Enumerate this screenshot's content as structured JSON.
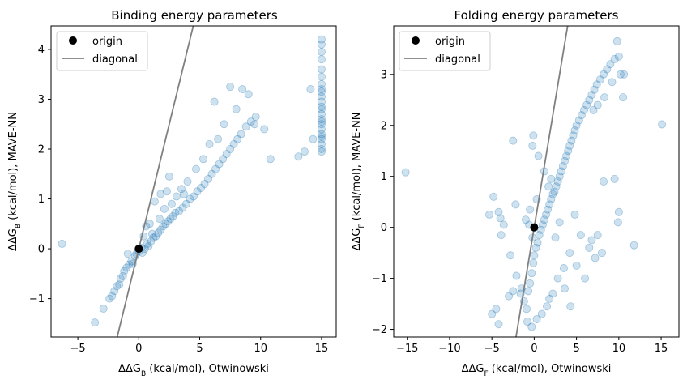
{
  "colors": {
    "points": "#1f77b4",
    "origin": "#000000",
    "diagonal": "#808080"
  },
  "chart_data": [
    {
      "type": "scatter",
      "title": "Binding energy parameters",
      "xlabel": "ΔΔG",
      "xlabel_sub": "B",
      "xlabel_suffix": " (kcal/mol), Otwinowski",
      "ylabel": "ΔΔG",
      "ylabel_sub": "B",
      "ylabel_suffix": " (kcal/mol), MAVE-NN",
      "xlim": [
        -7.2,
        16.2
      ],
      "ylim": [
        -1.77,
        4.47
      ],
      "xticks": [
        -5,
        0,
        5,
        10,
        15
      ],
      "yticks": [
        -1,
        0,
        1,
        2,
        3,
        4
      ],
      "legend_position": "upper-left",
      "legend": [
        {
          "label": "origin",
          "kind": "marker"
        },
        {
          "label": "diagonal",
          "kind": "line"
        }
      ],
      "origin": [
        0,
        0
      ],
      "diagonal_slope": 1,
      "grid": false,
      "points": [
        [
          -6.3,
          0.1
        ],
        [
          -3.6,
          -1.48
        ],
        [
          -2.9,
          -1.2
        ],
        [
          -2.4,
          -1.0
        ],
        [
          -2.2,
          -0.95
        ],
        [
          -2.0,
          -0.85
        ],
        [
          -1.8,
          -0.75
        ],
        [
          -1.6,
          -0.72
        ],
        [
          -1.5,
          -0.6
        ],
        [
          -1.3,
          -0.55
        ],
        [
          -1.2,
          -0.45
        ],
        [
          -1.0,
          -0.38
        ],
        [
          -0.8,
          -0.32
        ],
        [
          -0.6,
          -0.25
        ],
        [
          -0.5,
          -0.3
        ],
        [
          -0.3,
          -0.15
        ],
        [
          -0.2,
          -0.1
        ],
        [
          0.0,
          -0.05
        ],
        [
          0.2,
          0.02
        ],
        [
          0.3,
          -0.08
        ],
        [
          0.5,
          0.0
        ],
        [
          0.7,
          0.1
        ],
        [
          0.8,
          0.05
        ],
        [
          1.0,
          0.15
        ],
        [
          1.2,
          0.22
        ],
        [
          1.4,
          0.25
        ],
        [
          1.6,
          0.32
        ],
        [
          1.8,
          0.38
        ],
        [
          2.0,
          0.45
        ],
        [
          2.2,
          0.5
        ],
        [
          2.4,
          0.55
        ],
        [
          2.6,
          0.6
        ],
        [
          2.8,
          0.65
        ],
        [
          3.0,
          0.72
        ],
        [
          3.3,
          0.75
        ],
        [
          3.6,
          0.82
        ],
        [
          3.9,
          0.9
        ],
        [
          4.2,
          1.0
        ],
        [
          4.5,
          1.05
        ],
        [
          4.8,
          1.15
        ],
        [
          5.1,
          1.22
        ],
        [
          5.4,
          1.3
        ],
        [
          5.7,
          1.4
        ],
        [
          6.0,
          1.5
        ],
        [
          6.3,
          1.6
        ],
        [
          6.6,
          1.7
        ],
        [
          6.9,
          1.8
        ],
        [
          7.2,
          1.9
        ],
        [
          7.5,
          2.0
        ],
        [
          7.8,
          2.1
        ],
        [
          8.1,
          2.2
        ],
        [
          8.4,
          2.3
        ],
        [
          8.8,
          2.45
        ],
        [
          9.2,
          2.55
        ],
        [
          9.6,
          2.65
        ],
        [
          1.3,
          0.95
        ],
        [
          1.8,
          1.1
        ],
        [
          2.3,
          1.15
        ],
        [
          2.5,
          1.45
        ],
        [
          3.5,
          1.2
        ],
        [
          4.0,
          1.35
        ],
        [
          4.7,
          1.6
        ],
        [
          5.3,
          1.8
        ],
        [
          5.8,
          2.1
        ],
        [
          6.2,
          2.95
        ],
        [
          6.5,
          2.2
        ],
        [
          7.0,
          2.5
        ],
        [
          7.5,
          3.25
        ],
        [
          8.0,
          2.8
        ],
        [
          8.5,
          3.2
        ],
        [
          9.0,
          3.1
        ],
        [
          9.5,
          2.5
        ],
        [
          10.3,
          2.4
        ],
        [
          10.8,
          1.8
        ],
        [
          13.1,
          1.85
        ],
        [
          13.6,
          1.95
        ],
        [
          14.1,
          3.2
        ],
        [
          14.3,
          2.2
        ],
        [
          0.9,
          0.5
        ],
        [
          1.7,
          0.6
        ],
        [
          2.7,
          0.9
        ],
        [
          3.1,
          1.05
        ],
        [
          0.4,
          0.25
        ],
        [
          -0.9,
          -0.1
        ],
        [
          0.6,
          0.45
        ],
        [
          1.1,
          0.3
        ],
        [
          2.1,
          0.8
        ],
        [
          3.7,
          1.1
        ],
        [
          15.0,
          4.2
        ],
        [
          15.0,
          4.1
        ],
        [
          15.0,
          3.95
        ],
        [
          15.0,
          3.8
        ],
        [
          15.0,
          3.6
        ],
        [
          15.0,
          3.45
        ],
        [
          15.0,
          3.3
        ],
        [
          15.0,
          3.2
        ],
        [
          15.0,
          3.05
        ],
        [
          15.0,
          2.95
        ],
        [
          15.0,
          2.8
        ],
        [
          15.0,
          2.7
        ],
        [
          15.0,
          2.6
        ],
        [
          15.0,
          2.5
        ],
        [
          15.0,
          2.4
        ],
        [
          15.0,
          2.3
        ],
        [
          15.0,
          2.2
        ],
        [
          15.0,
          2.1
        ],
        [
          15.0,
          2.0
        ],
        [
          15.0,
          1.95
        ],
        [
          15.0,
          2.85
        ],
        [
          15.0,
          3.15
        ],
        [
          15.0,
          2.55
        ],
        [
          15.0,
          2.25
        ]
      ]
    },
    {
      "type": "scatter",
      "title": "Folding energy parameters",
      "xlabel": "ΔΔG",
      "xlabel_sub": "F",
      "xlabel_suffix": " (kcal/mol), Otwinowski",
      "ylabel": "ΔΔG",
      "ylabel_sub": "F",
      "ylabel_suffix": " (kcal/mol), MAVE-NN",
      "xlim": [
        -16.6,
        17.1
      ],
      "ylim": [
        -2.15,
        3.95
      ],
      "xticks": [
        -15,
        -10,
        -5,
        0,
        5,
        10,
        15
      ],
      "yticks": [
        -2,
        -1,
        0,
        1,
        2,
        3
      ],
      "legend_position": "upper-left",
      "legend": [
        {
          "label": "origin",
          "kind": "marker"
        },
        {
          "label": "diagonal",
          "kind": "line"
        }
      ],
      "origin": [
        0,
        0
      ],
      "diagonal_slope": 1,
      "grid": false,
      "points": [
        [
          -15.2,
          1.08
        ],
        [
          -5.3,
          0.25
        ],
        [
          -4.8,
          0.6
        ],
        [
          -4.2,
          0.3
        ],
        [
          -4.0,
          0.18
        ],
        [
          -3.9,
          -0.15
        ],
        [
          -3.6,
          0.05
        ],
        [
          -2.8,
          -0.55
        ],
        [
          -2.1,
          -0.95
        ],
        [
          -1.6,
          -1.3
        ],
        [
          -1.2,
          -1.45
        ],
        [
          -0.9,
          -1.6
        ],
        [
          -0.7,
          -1.25
        ],
        [
          -0.5,
          -1.1
        ],
        [
          -0.3,
          -0.9
        ],
        [
          -0.1,
          -0.7
        ],
        [
          0.0,
          -0.55
        ],
        [
          0.2,
          -0.4
        ],
        [
          0.4,
          -0.3
        ],
        [
          0.6,
          -0.15
        ],
        [
          0.8,
          -0.05
        ],
        [
          1.0,
          0.05
        ],
        [
          1.2,
          0.15
        ],
        [
          1.4,
          0.25
        ],
        [
          1.6,
          0.35
        ],
        [
          1.8,
          0.45
        ],
        [
          2.0,
          0.55
        ],
        [
          2.2,
          0.65
        ],
        [
          2.4,
          0.7
        ],
        [
          2.6,
          0.8
        ],
        [
          2.8,
          0.9
        ],
        [
          3.0,
          1.0
        ],
        [
          3.2,
          1.1
        ],
        [
          3.4,
          1.2
        ],
        [
          3.6,
          1.3
        ],
        [
          3.8,
          1.4
        ],
        [
          4.0,
          1.5
        ],
        [
          4.2,
          1.6
        ],
        [
          4.4,
          1.7
        ],
        [
          4.6,
          1.8
        ],
        [
          4.8,
          1.9
        ],
        [
          5.0,
          2.0
        ],
        [
          5.3,
          2.1
        ],
        [
          5.6,
          2.2
        ],
        [
          5.9,
          2.3
        ],
        [
          6.2,
          2.4
        ],
        [
          6.5,
          2.5
        ],
        [
          6.8,
          2.6
        ],
        [
          7.1,
          2.7
        ],
        [
          7.4,
          2.8
        ],
        [
          7.8,
          2.9
        ],
        [
          8.2,
          3.0
        ],
        [
          8.6,
          3.1
        ],
        [
          9.0,
          3.2
        ],
        [
          9.5,
          3.3
        ],
        [
          10.0,
          3.35
        ],
        [
          10.2,
          3.0
        ],
        [
          9.8,
          3.65
        ],
        [
          10.6,
          3.0
        ],
        [
          9.2,
          2.85
        ],
        [
          8.3,
          2.55
        ],
        [
          7.5,
          2.4
        ],
        [
          7.0,
          2.3
        ],
        [
          10.5,
          2.55
        ],
        [
          15.1,
          2.02
        ],
        [
          11.8,
          -0.35
        ],
        [
          9.9,
          0.1
        ],
        [
          8.0,
          -0.5
        ],
        [
          7.2,
          -0.6
        ],
        [
          6.5,
          -0.4
        ],
        [
          5.5,
          -0.15
        ],
        [
          4.8,
          0.25
        ],
        [
          4.2,
          -0.5
        ],
        [
          3.5,
          -0.8
        ],
        [
          2.8,
          -1.0
        ],
        [
          2.2,
          -1.3
        ],
        [
          1.8,
          -1.4
        ],
        [
          1.5,
          -1.55
        ],
        [
          0.9,
          -1.7
        ],
        [
          0.3,
          -1.8
        ],
        [
          -0.3,
          -1.95
        ],
        [
          -0.8,
          -1.85
        ],
        [
          -1.5,
          -1.2
        ],
        [
          -3.0,
          -1.35
        ],
        [
          -2.5,
          -1.25
        ],
        [
          -4.5,
          -1.6
        ],
        [
          -4.2,
          -1.9
        ],
        [
          -5.0,
          -1.7
        ],
        [
          -2.5,
          1.7
        ],
        [
          -0.2,
          1.6
        ],
        [
          -0.1,
          1.8
        ],
        [
          0.5,
          1.4
        ],
        [
          1.2,
          1.1
        ],
        [
          2.0,
          0.95
        ],
        [
          1.7,
          0.8
        ],
        [
          0.3,
          0.55
        ],
        [
          -0.5,
          0.35
        ],
        [
          -2.2,
          0.45
        ],
        [
          -1.0,
          0.15
        ],
        [
          -0.6,
          0.05
        ],
        [
          -0.2,
          -0.2
        ],
        [
          2.5,
          -0.2
        ],
        [
          3.0,
          0.1
        ],
        [
          5.0,
          -0.75
        ],
        [
          6.0,
          -1.0
        ],
        [
          6.8,
          -0.25
        ],
        [
          7.5,
          -0.15
        ],
        [
          8.2,
          0.9
        ],
        [
          9.5,
          0.95
        ],
        [
          10.0,
          0.3
        ],
        [
          4.3,
          -1.55
        ],
        [
          3.6,
          -1.2
        ]
      ]
    }
  ]
}
